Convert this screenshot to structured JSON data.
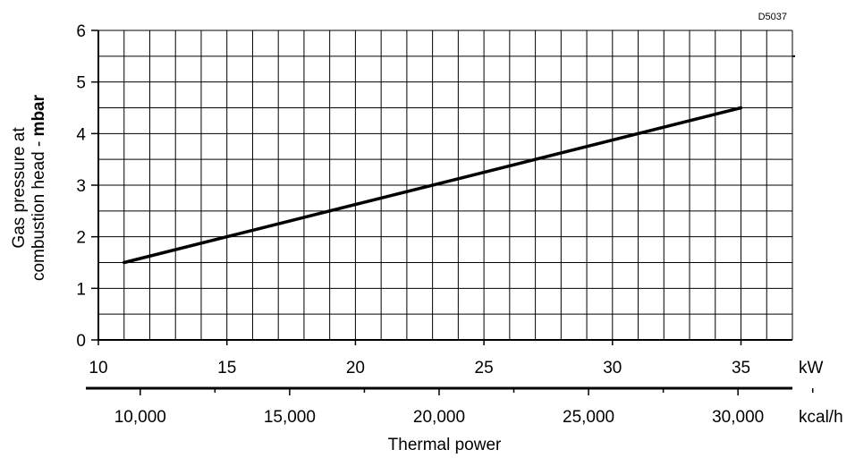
{
  "chart_data": {
    "type": "line",
    "code": "D5037",
    "ylabel_line1": "Gas pressure at",
    "ylabel_line2_prefix": "combustion head - ",
    "ylabel_line2_unit": "mbar",
    "xlabel": "Thermal power",
    "primary_x_unit": "kW",
    "secondary_x_unit": "kcal/h",
    "xlim": [
      10,
      37
    ],
    "ylim": [
      0,
      6
    ],
    "x_ticks": [
      "10",
      "15",
      "20",
      "25",
      "30",
      "35"
    ],
    "y_ticks": [
      "0",
      "1",
      "2",
      "3",
      "4",
      "5",
      "6"
    ],
    "secondary_ticks": [
      "10,000",
      "15,000",
      "20,000",
      "25,000",
      "30,000"
    ],
    "grid": true,
    "series": [
      {
        "x": [
          11,
          35
        ],
        "y": [
          1.5,
          4.5
        ]
      }
    ]
  }
}
